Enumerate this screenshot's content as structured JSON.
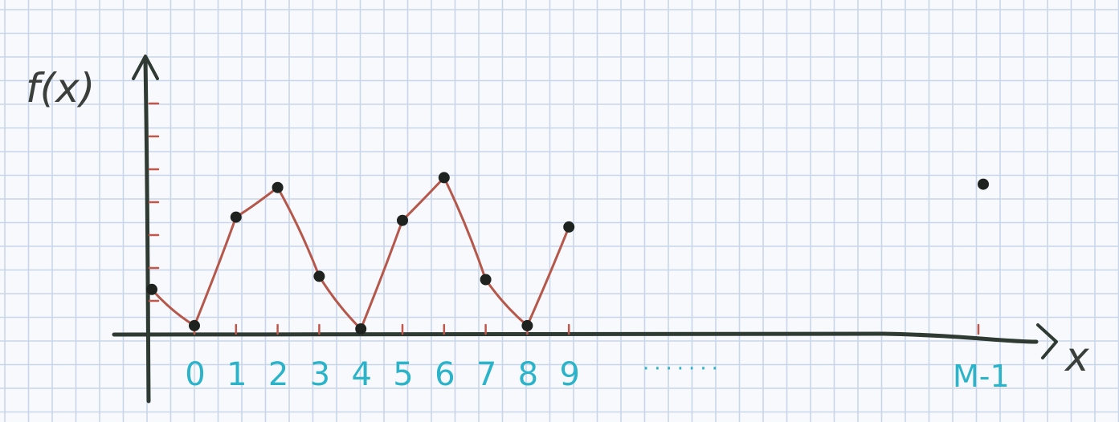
{
  "paper": {
    "background": "#f7f9fc",
    "grid_color": "#c9d6ea"
  },
  "colors": {
    "axis": "#2f3a33",
    "curve": "#b5574a",
    "point": "#1f2320",
    "tick": "#c0574a",
    "label": "#2bb3c9"
  },
  "labels": {
    "y_axis": "f(x)",
    "x_axis": "x",
    "ellipsis": "·······",
    "last_tick": "M-1"
  },
  "chart_data": {
    "type": "scatter",
    "xlabel": "x",
    "ylabel": "f(x)",
    "tick_labels": [
      "0",
      "1",
      "2",
      "3",
      "4",
      "5",
      "6",
      "7",
      "8",
      "9"
    ],
    "last_tick_label": "M-1",
    "y_ticks": [
      1,
      2,
      3,
      4,
      5,
      6,
      7
    ],
    "grid": true,
    "points": [
      {
        "x": -1,
        "y": 1.2
      },
      {
        "x": 0,
        "y": 0.1
      },
      {
        "x": 1,
        "y": 3.4
      },
      {
        "x": 2,
        "y": 4.3
      },
      {
        "x": 3,
        "y": 1.6
      },
      {
        "x": 4,
        "y": 0.0
      },
      {
        "x": 5,
        "y": 3.3
      },
      {
        "x": 6,
        "y": 4.6
      },
      {
        "x": 7,
        "y": 1.5
      },
      {
        "x": 8,
        "y": 0.1
      },
      {
        "x": 9,
        "y": 3.1
      }
    ],
    "last_point": {
      "x": "M-1",
      "y": 4.4
    }
  }
}
